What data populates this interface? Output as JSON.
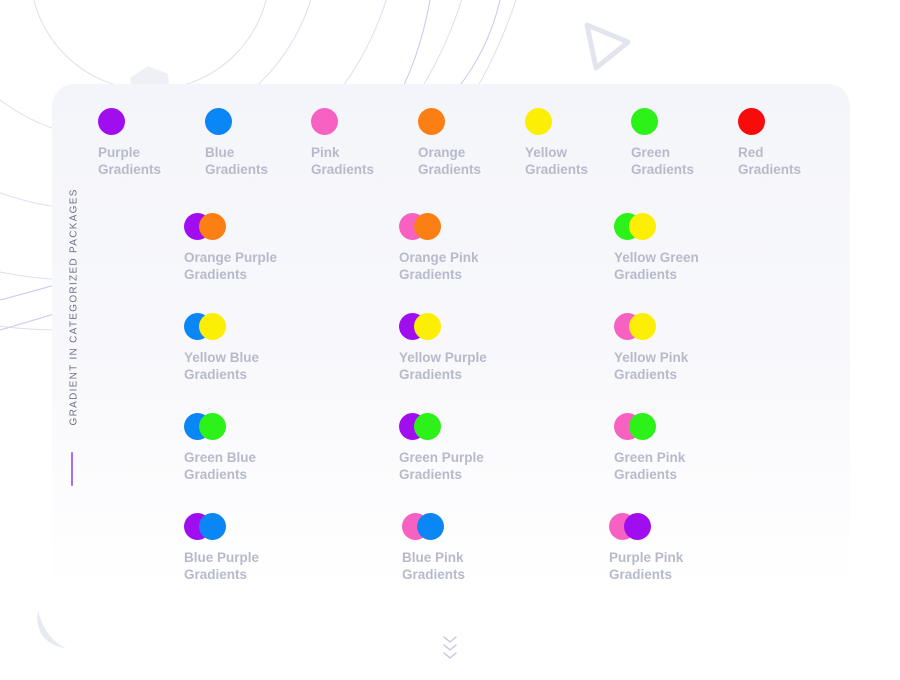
{
  "singles": [
    {
      "line1": "Purple",
      "line2": "Gradients",
      "color": "#a00ef0"
    },
    {
      "line1": "Blue",
      "line2": "Gradients",
      "color": "#0a86f5"
    },
    {
      "line1": "Pink",
      "line2": "Gradients",
      "color": "#f762c2"
    },
    {
      "line1": "Orange",
      "line2": "Gradients",
      "color": "#fb7f12"
    },
    {
      "line1": "Yellow",
      "line2": "Gradients",
      "color": "#fcee04"
    },
    {
      "line1": "Green",
      "line2": "Gradients",
      "color": "#2cf21a"
    },
    {
      "line1": "Red",
      "line2": "Gradients",
      "color": "#f70b0b"
    }
  ],
  "side_label": "GRADIENT IN CATEGORIZED PACKAGES",
  "pairs": [
    {
      "line1": "Orange Purple",
      "line2": "Gradients",
      "c1": "#a00ef0",
      "c2": "#fb7f12"
    },
    {
      "line1": "Orange Pink",
      "line2": "Gradients",
      "c1": "#f762c2",
      "c2": "#fb7f12"
    },
    {
      "line1": "Yellow Green",
      "line2": "Gradients",
      "c1": "#2cf21a",
      "c2": "#fcee04"
    },
    {
      "line1": "Yellow Blue",
      "line2": "Gradients",
      "c1": "#0a86f5",
      "c2": "#fcee04"
    },
    {
      "line1": "Yellow Purple",
      "line2": "Gradients",
      "c1": "#a00ef0",
      "c2": "#fcee04"
    },
    {
      "line1": "Yellow Pink",
      "line2": "Gradients",
      "c1": "#f762c2",
      "c2": "#fcee04"
    },
    {
      "line1": "Green Blue",
      "line2": "Gradients",
      "c1": "#0a86f5",
      "c2": "#2cf21a"
    },
    {
      "line1": "Green Purple",
      "line2": "Gradients",
      "c1": "#a00ef0",
      "c2": "#2cf21a"
    },
    {
      "line1": "Green Pink",
      "line2": "Gradients",
      "c1": "#f762c2",
      "c2": "#2cf21a"
    },
    {
      "line1": "Blue Purple",
      "line2": "Gradients",
      "c1": "#a00ef0",
      "c2": "#0a86f5"
    },
    {
      "line1": "Blue Pink",
      "line2": "Gradients",
      "c1": "#f762c2",
      "c2": "#0a86f5"
    },
    {
      "line1": "Purple Pink",
      "line2": "Gradients",
      "c1": "#f762c2",
      "c2": "#a00ef0"
    }
  ]
}
